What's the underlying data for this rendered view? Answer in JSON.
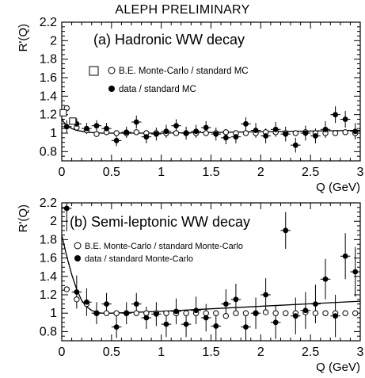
{
  "figure_title": "ALEPH PRELIMINARY",
  "chart_data": [
    {
      "type": "scatter",
      "panel_title": "(a)  Hadronic WW decay",
      "xlabel": "Q (GeV)",
      "ylabel": "R'(Q)",
      "xlim": [
        0,
        3
      ],
      "ylim": [
        0.7,
        2.2
      ],
      "x_ticks": [
        "0",
        "0.5",
        "1",
        "1.5",
        "2",
        "2.5",
        "3"
      ],
      "y_ticks": [
        "0.8",
        "1",
        "1.2",
        "1.4",
        "1.6",
        "1.8",
        "2",
        "2.2"
      ],
      "legend": [
        {
          "marker": "open-circle",
          "label": "B.E. Monte-Carlo / standard MC"
        },
        {
          "marker": "filled-circle",
          "label": "data / standard MC"
        }
      ],
      "series": [
        {
          "name": "B.E. Monte-Carlo / standard MC",
          "marker": "open-circle",
          "x": [
            0.05,
            0.15,
            0.25,
            0.35,
            0.45,
            0.55,
            0.65,
            0.75,
            0.85,
            0.95,
            1.05,
            1.15,
            1.25,
            1.35,
            1.45,
            1.55,
            1.65,
            1.75,
            1.85,
            1.95,
            2.05,
            2.15,
            2.25,
            2.35,
            2.45,
            2.55,
            2.65,
            2.75,
            2.85,
            2.95
          ],
          "y": [
            1.27,
            1.06,
            1.03,
            0.99,
            1.01,
            1.0,
            1.0,
            1.01,
            1.0,
            1.0,
            1.0,
            1.0,
            1.0,
            1.0,
            1.0,
            1.0,
            1.01,
            1.0,
            1.0,
            1.0,
            1.01,
            1.01,
            1.0,
            1.0,
            1.01,
            1.0,
            1.0,
            1.0,
            1.01,
            1.0
          ]
        },
        {
          "name": "data / standard MC",
          "marker": "filled-circle",
          "x": [
            0.05,
            0.15,
            0.25,
            0.35,
            0.45,
            0.55,
            0.65,
            0.75,
            0.85,
            0.95,
            1.05,
            1.15,
            1.25,
            1.35,
            1.45,
            1.55,
            1.65,
            1.75,
            1.85,
            1.95,
            2.05,
            2.15,
            2.25,
            2.35,
            2.45,
            2.55,
            2.65,
            2.75,
            2.85,
            2.95
          ],
          "y": [
            1.07,
            1.1,
            1.05,
            1.08,
            1.05,
            0.92,
            1.01,
            1.12,
            0.96,
            0.99,
            1.02,
            1.08,
            1.0,
            1.02,
            1.06,
            0.99,
            0.95,
            0.96,
            1.1,
            1.03,
            0.97,
            1.04,
            0.99,
            0.87,
            1.0,
            0.97,
            1.04,
            1.2,
            1.15,
            1.02
          ],
          "yerr": [
            0.07,
            0.06,
            0.06,
            0.06,
            0.06,
            0.06,
            0.06,
            0.07,
            0.07,
            0.07,
            0.07,
            0.07,
            0.07,
            0.07,
            0.07,
            0.07,
            0.07,
            0.07,
            0.07,
            0.08,
            0.08,
            0.08,
            0.08,
            0.08,
            0.08,
            0.08,
            0.09,
            0.09,
            0.09,
            0.09
          ]
        }
      ],
      "extra_markers": [
        {
          "marker": "open-square",
          "x": [
            0.015,
            0.11
          ],
          "y": [
            1.22,
            1.13
          ]
        }
      ],
      "fit_line": {
        "x": [
          0,
          0.02,
          0.05,
          0.1,
          0.15,
          0.25,
          0.4,
          0.6,
          1.0,
          3.0
        ],
        "y": [
          1.16,
          1.12,
          1.08,
          1.05,
          1.03,
          1.01,
          1.0,
          1.0,
          1.0,
          1.03
        ]
      }
    },
    {
      "type": "scatter",
      "panel_title": "(b)  Semi-leptonic WW decay",
      "xlabel": "Q (GeV)",
      "ylabel": "R'(Q)",
      "xlim": [
        0,
        3
      ],
      "ylim": [
        0.7,
        2.2
      ],
      "x_ticks": [
        "0",
        "0.5",
        "1",
        "1.5",
        "2",
        "2.5",
        "3"
      ],
      "y_ticks": [
        "0.8",
        "1",
        "1.2",
        "1.4",
        "1.6",
        "1.8",
        "2",
        "2.2"
      ],
      "legend": [
        {
          "marker": "open-circle",
          "label": "B.E. Monte-Carlo / standard Monte-Carlo"
        },
        {
          "marker": "filled-circle",
          "label": "data / standard Monte-Carlo"
        }
      ],
      "series": [
        {
          "name": "B.E. Monte-Carlo / standard Monte-Carlo",
          "marker": "open-circle",
          "x": [
            0.05,
            0.15,
            0.25,
            0.35,
            0.45,
            0.55,
            0.65,
            0.75,
            0.85,
            0.95,
            1.05,
            1.15,
            1.25,
            1.35,
            1.45,
            1.55,
            1.65,
            1.75,
            1.85,
            1.95,
            2.05,
            2.15,
            2.25,
            2.35,
            2.45,
            2.55,
            2.65,
            2.75,
            2.85,
            2.95
          ],
          "y": [
            1.26,
            1.15,
            1.1,
            1.0,
            1.0,
            1.0,
            1.0,
            1.0,
            1.0,
            1.0,
            1.0,
            1.0,
            1.0,
            1.0,
            1.0,
            1.0,
            0.97,
            1.0,
            1.0,
            1.0,
            1.01,
            1.0,
            1.0,
            1.0,
            1.01,
            1.0,
            1.0,
            1.0,
            1.0,
            1.0
          ]
        },
        {
          "name": "data / standard Monte-Carlo",
          "marker": "filled-circle",
          "x": [
            0.05,
            0.15,
            0.25,
            0.35,
            0.45,
            0.55,
            0.65,
            0.75,
            0.85,
            0.95,
            1.05,
            1.15,
            1.25,
            1.35,
            1.45,
            1.55,
            1.65,
            1.75,
            1.85,
            1.95,
            2.05,
            2.15,
            2.25,
            2.35,
            2.45,
            2.55,
            2.65,
            2.75,
            2.85,
            2.95
          ],
          "y": [
            2.14,
            1.23,
            1.12,
            1.0,
            1.1,
            0.85,
            1.0,
            1.1,
            0.95,
            0.99,
            0.88,
            1.02,
            0.88,
            1.03,
            0.95,
            0.86,
            1.1,
            1.15,
            0.85,
            1.0,
            1.2,
            0.9,
            1.9,
            0.97,
            1.03,
            1.1,
            1.37,
            0.97,
            1.62,
            1.45
          ],
          "yerr": [
            0.25,
            0.18,
            0.15,
            0.12,
            0.12,
            0.12,
            0.12,
            0.12,
            0.12,
            0.13,
            0.14,
            0.14,
            0.14,
            0.15,
            0.15,
            0.16,
            0.16,
            0.17,
            0.17,
            0.17,
            0.18,
            0.18,
            0.2,
            0.2,
            0.2,
            0.21,
            0.22,
            0.23,
            0.25,
            0.27
          ]
        }
      ],
      "fit_line": {
        "x": [
          0,
          0.05,
          0.1,
          0.15,
          0.2,
          0.25,
          0.3,
          0.35,
          0.4,
          0.5,
          1.0,
          3.0
        ],
        "y": [
          1.85,
          1.62,
          1.42,
          1.26,
          1.14,
          1.07,
          1.03,
          1.01,
          1.0,
          1.0,
          1.02,
          1.13
        ]
      }
    }
  ]
}
